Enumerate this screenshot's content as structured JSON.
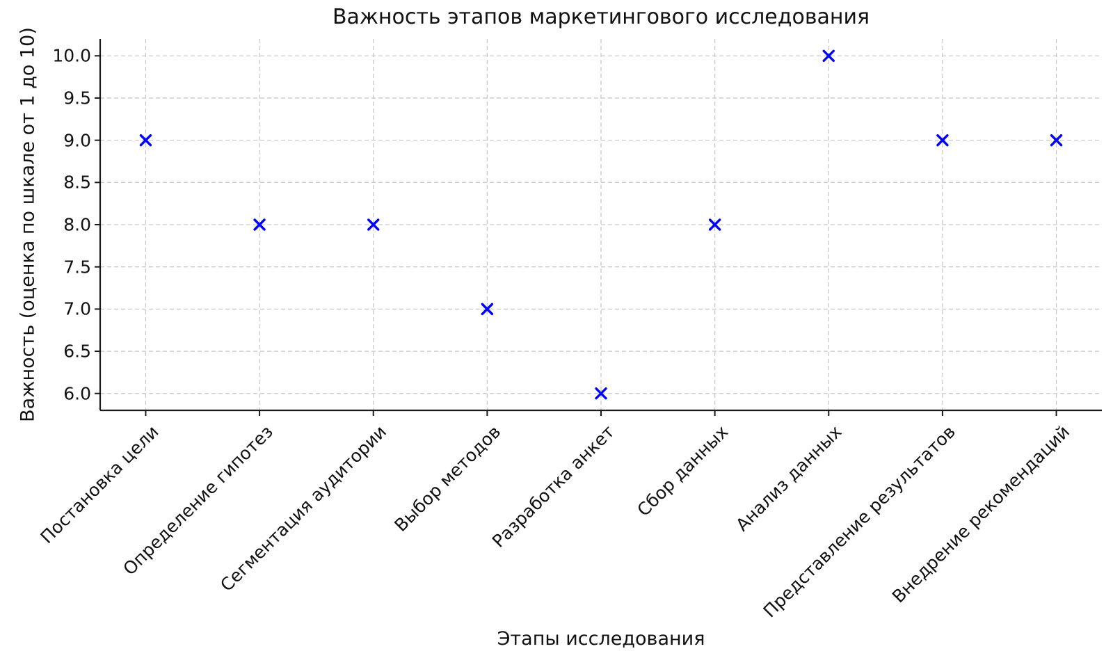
{
  "chart_data": {
    "type": "scatter",
    "title": "Важность этапов маркетингового исследования",
    "xlabel": "Этапы исследования",
    "ylabel": "Важность (оценка по шкале от 1 до 10)",
    "categories": [
      "Постановка цели",
      "Определение гипотез",
      "Сегментация аудитории",
      "Выбор методов",
      "Разработка анкет",
      "Сбор данных",
      "Анализ данных",
      "Представление результатов",
      "Внедрение рекомендаций"
    ],
    "values": [
      9,
      8,
      8,
      7,
      6,
      8,
      10,
      9,
      9
    ],
    "yticks": [
      6.0,
      6.5,
      7.0,
      7.5,
      8.0,
      8.5,
      9.0,
      9.5,
      10.0
    ],
    "ytick_format_decimals": 1,
    "ylim": [
      5.8,
      10.2
    ],
    "marker": "x",
    "marker_color": "#0000ff",
    "grid": true,
    "grid_style": "dashed",
    "grid_color": "#c9c9c9",
    "axis_color": "#1a1a1a",
    "text_color": "#111111",
    "background": "#ffffff",
    "legend": "none"
  }
}
